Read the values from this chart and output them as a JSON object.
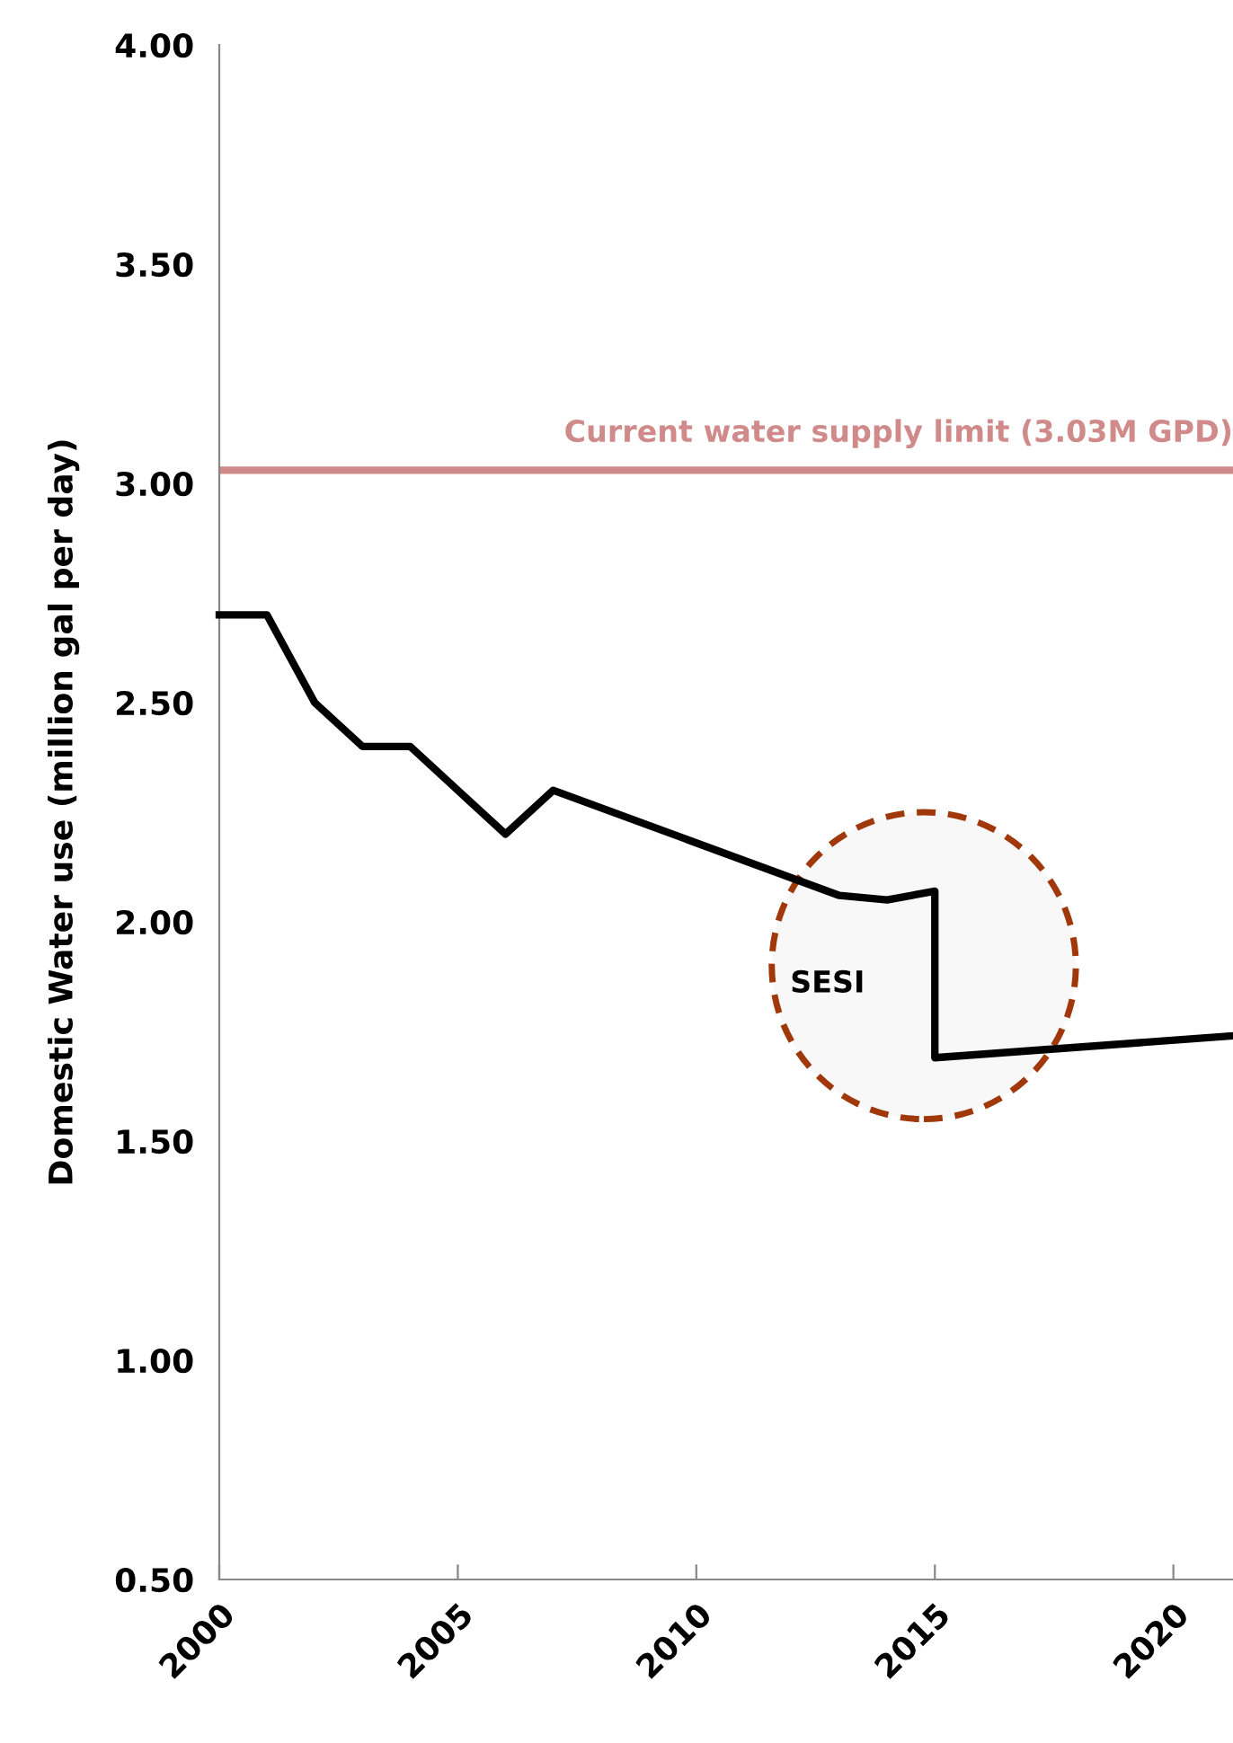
{
  "chart_data": {
    "type": "line",
    "ylabel": "Domestic Water use (million gal per day)",
    "series": [
      {
        "color": "#000000",
        "x": [
          2000,
          2001,
          2002,
          2003,
          2004,
          2006,
          2007,
          2013,
          2014,
          2015,
          2015,
          2021.25
        ],
        "values": [
          2.7,
          2.7,
          2.5,
          2.4,
          2.4,
          2.2,
          2.3,
          2.06,
          2.05,
          2.07,
          1.69,
          1.74
        ]
      }
    ],
    "xlim": [
      2000,
      2021.25
    ],
    "xticks": [
      2000,
      2005,
      2010,
      2015,
      2020
    ],
    "ylim": [
      0.5,
      4.0
    ],
    "yticks": [
      {
        "value": 0.5,
        "label": "0.50"
      },
      {
        "value": 1.0,
        "label": "1.00"
      },
      {
        "value": 1.5,
        "label": "1.50"
      },
      {
        "value": 2.0,
        "label": "2.00"
      },
      {
        "value": 2.5,
        "label": "2.50"
      },
      {
        "value": 3.0,
        "label": "3.00"
      },
      {
        "value": 3.5,
        "label": "3.50"
      },
      {
        "value": 4.0,
        "label": "4.00"
      }
    ],
    "ref_lines": [
      {
        "axis": "y",
        "value": 3.03,
        "label": "Current water supply limit (3.03M GPD)",
        "color": "#d08a8a"
      }
    ],
    "annotations": [
      "SESI"
    ],
    "grid": false,
    "legend": false,
    "marker": "none",
    "line_style": "solid"
  }
}
